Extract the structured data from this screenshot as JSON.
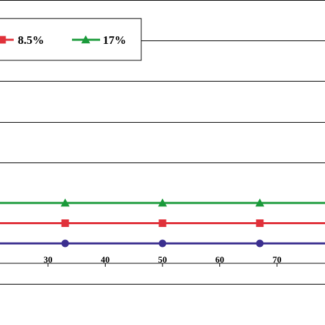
{
  "chart_data": {
    "type": "line",
    "title": "",
    "xlabel": "",
    "ylabel": "",
    "x_ticks": [
      30,
      40,
      50,
      60,
      70
    ],
    "xlim": [
      18.4,
      80
    ],
    "grid": true,
    "legend_placement": "top-left",
    "series": [
      {
        "name": "",
        "color": "#3b2f8f",
        "marker": "circle",
        "x": [
          33,
          50,
          67
        ],
        "y": [
          0,
          0,
          0
        ]
      },
      {
        "name": "8.5%",
        "color": "#e0313a",
        "marker": "square",
        "x": [
          33,
          50,
          67
        ],
        "y": [
          8.5,
          8.5,
          8.5
        ]
      },
      {
        "name": "17%",
        "color": "#1a9a3a",
        "marker": "triangle",
        "x": [
          33,
          50,
          67
        ],
        "y": [
          17,
          17,
          17
        ]
      }
    ]
  }
}
